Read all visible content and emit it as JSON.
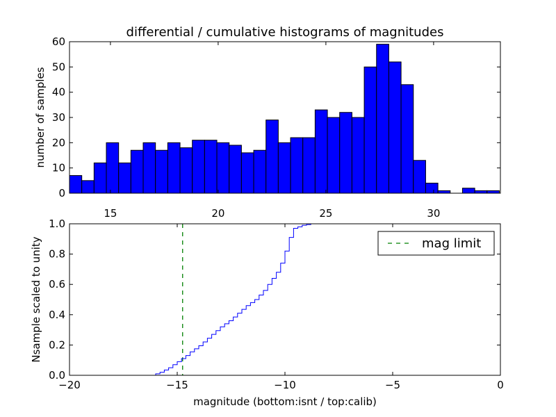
{
  "figure_title": "differential / cumulative histograms of magnitudes",
  "colors": {
    "bars": "#0000ff",
    "cumulative": "#0000ff",
    "limit": "#008000",
    "axes": "#000000"
  },
  "chart_data": [
    {
      "id": "top",
      "type": "bar",
      "title": "differential / cumulative histograms of magnitudes",
      "xlabel": "",
      "ylabel": "number of samples",
      "xlim": [
        13.1,
        33.1
      ],
      "ylim": [
        0,
        60
      ],
      "bin_start": 13.1,
      "bin_width": 0.57,
      "values": [
        7,
        5,
        12,
        20,
        12,
        17,
        20,
        17,
        20,
        18,
        21,
        21,
        20,
        19,
        16,
        17,
        29,
        20,
        22,
        22,
        33,
        30,
        32,
        30,
        50,
        59,
        52,
        43,
        13,
        4,
        1,
        0,
        2,
        1,
        1
      ],
      "xticks": [
        15,
        20,
        25,
        30
      ],
      "xtick_labels": [
        "15",
        "20",
        "25",
        "30"
      ],
      "xticks_position": "bottom",
      "yticks": [
        0,
        10,
        20,
        30,
        40,
        50,
        60
      ],
      "ytick_labels": [
        "0",
        "10",
        "20",
        "30",
        "40",
        "50",
        "60"
      ]
    },
    {
      "id": "bottom",
      "type": "line",
      "drawstyle": "steps",
      "xlabel": "magnitude (bottom:isnt / top:calib)",
      "ylabel": "Nsample scaled to unity",
      "xlim": [
        -20,
        0
      ],
      "ylim": [
        0,
        1
      ],
      "x": [
        -20.0,
        -16.0,
        -15.8,
        -15.6,
        -15.4,
        -15.2,
        -15.0,
        -14.8,
        -14.6,
        -14.4,
        -14.2,
        -14.0,
        -13.8,
        -13.6,
        -13.4,
        -13.2,
        -13.0,
        -12.8,
        -12.6,
        -12.4,
        -12.2,
        -12.0,
        -11.8,
        -11.6,
        -11.4,
        -11.2,
        -11.0,
        -10.8,
        -10.6,
        -10.4,
        -10.2,
        -10.0,
        -9.8,
        -9.6,
        -9.4,
        -9.2,
        -9.0,
        -8.8,
        -8.6,
        -8.4,
        -8.2,
        -8.0,
        -0.05
      ],
      "y": [
        0.0,
        0.01,
        0.02,
        0.035,
        0.05,
        0.07,
        0.09,
        0.11,
        0.13,
        0.155,
        0.175,
        0.195,
        0.22,
        0.245,
        0.27,
        0.295,
        0.32,
        0.34,
        0.36,
        0.385,
        0.41,
        0.435,
        0.46,
        0.48,
        0.5,
        0.53,
        0.56,
        0.6,
        0.64,
        0.68,
        0.74,
        0.82,
        0.91,
        0.97,
        0.98,
        0.99,
        0.995,
        1.0,
        1.0,
        1.0,
        1.0,
        1.0,
        1.0
      ],
      "limit_x": -14.75,
      "legend_label": "mag limit",
      "legend_position": "top-right",
      "xticks": [
        -20,
        -15,
        -10,
        -5,
        0
      ],
      "xtick_labels": [
        "−20",
        "−15",
        "−10",
        "−5",
        "0"
      ],
      "yticks": [
        0.0,
        0.2,
        0.4,
        0.6,
        0.8,
        1.0
      ],
      "ytick_labels": [
        "0.0",
        "0.2",
        "0.4",
        "0.6",
        "0.8",
        "1.0"
      ]
    }
  ]
}
